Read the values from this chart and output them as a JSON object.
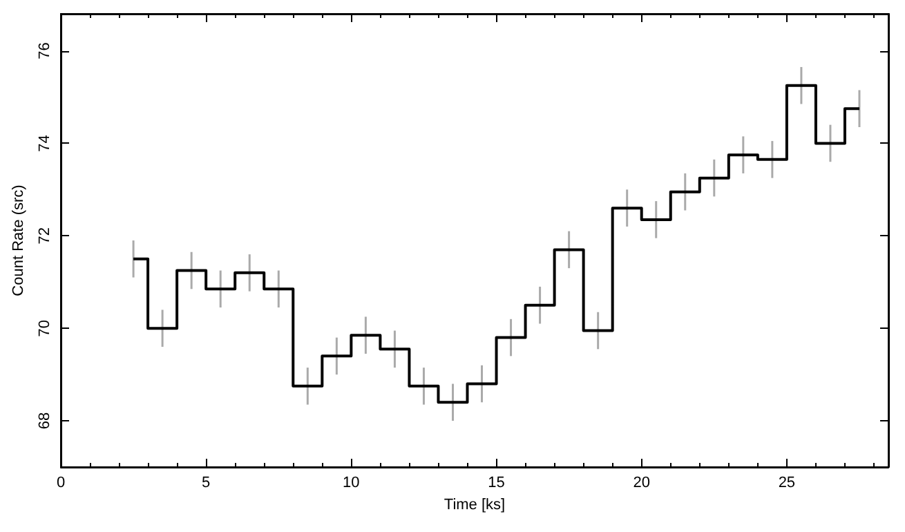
{
  "chart_data": {
    "type": "step",
    "xlabel": "Time [ks]",
    "ylabel": "Count Rate (src)",
    "x": [
      2.5,
      3.5,
      4.5,
      5.5,
      6.5,
      7.5,
      8.5,
      9.5,
      10.5,
      11.5,
      12.5,
      13.5,
      14.5,
      15.5,
      16.5,
      17.5,
      18.5,
      19.5,
      20.5,
      21.5,
      22.5,
      23.5,
      24.5,
      25.5,
      26.5,
      27.5
    ],
    "series": [
      {
        "color": "#000000",
        "values": [
          71.5,
          70.0,
          71.25,
          70.85,
          71.2,
          70.85,
          68.75,
          69.4,
          69.85,
          69.55,
          68.75,
          68.4,
          68.8,
          69.8,
          70.5,
          71.7,
          69.95,
          72.6,
          72.35,
          72.95,
          73.25,
          73.75,
          73.65,
          75.25,
          74.0,
          74.75
        ],
        "errors": [
          0.4,
          0.4,
          0.4,
          0.4,
          0.4,
          0.4,
          0.4,
          0.4,
          0.4,
          0.4,
          0.4,
          0.4,
          0.4,
          0.4,
          0.4,
          0.4,
          0.4,
          0.4,
          0.4,
          0.4,
          0.4,
          0.4,
          0.4,
          0.4,
          0.4,
          0.4
        ]
      }
    ],
    "xlim": [
      0,
      28.5
    ],
    "xticks": [
      0,
      5,
      10,
      15,
      20,
      25
    ],
    "ylim": [
      67,
      76.8
    ],
    "yticks": [
      68,
      70,
      72,
      74,
      76
    ]
  }
}
